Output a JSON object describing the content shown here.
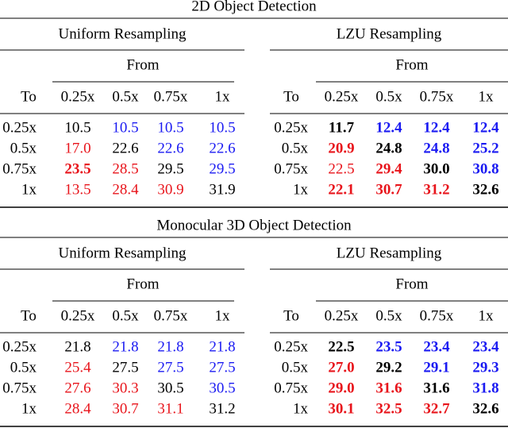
{
  "sections": [
    {
      "title": "2D Object Detection",
      "tables": [
        {
          "title": "Uniform Resampling",
          "from_label": "From",
          "to_label": "To",
          "columns": [
            "0.25x",
            "0.5x",
            "0.75x",
            "1x"
          ],
          "rows": [
            {
              "label": "0.25x",
              "values": [
                "10.5",
                "10.5",
                "10.5",
                "10.5"
              ],
              "bold": [
                false,
                false,
                false,
                false
              ]
            },
            {
              "label": "0.5x",
              "values": [
                "17.0",
                "22.6",
                "22.6",
                "22.6"
              ],
              "bold": [
                false,
                false,
                false,
                false
              ]
            },
            {
              "label": "0.75x",
              "values": [
                "23.5",
                "28.5",
                "29.5",
                "29.5"
              ],
              "bold": [
                true,
                false,
                false,
                false
              ]
            },
            {
              "label": "1x",
              "values": [
                "13.5",
                "28.4",
                "30.9",
                "31.9"
              ],
              "bold": [
                false,
                false,
                false,
                false
              ]
            }
          ]
        },
        {
          "title": "LZU Resampling",
          "from_label": "From",
          "to_label": "To",
          "columns": [
            "0.25x",
            "0.5x",
            "0.75x",
            "1x"
          ],
          "rows": [
            {
              "label": "0.25x",
              "values": [
                "11.7",
                "12.4",
                "12.4",
                "12.4"
              ],
              "bold": [
                true,
                true,
                true,
                true
              ]
            },
            {
              "label": "0.5x",
              "values": [
                "20.9",
                "24.8",
                "24.8",
                "25.2"
              ],
              "bold": [
                true,
                true,
                true,
                true
              ]
            },
            {
              "label": "0.75x",
              "values": [
                "22.5",
                "29.4",
                "30.0",
                "30.8"
              ],
              "bold": [
                false,
                true,
                true,
                true
              ]
            },
            {
              "label": "1x",
              "values": [
                "22.1",
                "30.7",
                "31.2",
                "32.6"
              ],
              "bold": [
                true,
                true,
                true,
                true
              ]
            }
          ]
        }
      ]
    },
    {
      "title": "Monocular 3D Object Detection",
      "tables": [
        {
          "title": "Uniform Resampling",
          "from_label": "From",
          "to_label": "To",
          "columns": [
            "0.25x",
            "0.5x",
            "0.75x",
            "1x"
          ],
          "rows": [
            {
              "label": "0.25x",
              "values": [
                "21.8",
                "21.8",
                "21.8",
                "21.8"
              ],
              "bold": [
                false,
                false,
                false,
                false
              ]
            },
            {
              "label": "0.5x",
              "values": [
                "25.4",
                "27.5",
                "27.5",
                "27.5"
              ],
              "bold": [
                false,
                false,
                false,
                false
              ]
            },
            {
              "label": "0.75x",
              "values": [
                "27.6",
                "30.3",
                "30.5",
                "30.5"
              ],
              "bold": [
                false,
                false,
                false,
                false
              ]
            },
            {
              "label": "1x",
              "values": [
                "28.4",
                "30.7",
                "31.1",
                "31.2"
              ],
              "bold": [
                false,
                false,
                false,
                false
              ]
            }
          ]
        },
        {
          "title": "LZU Resampling",
          "from_label": "From",
          "to_label": "To",
          "columns": [
            "0.25x",
            "0.5x",
            "0.75x",
            "1x"
          ],
          "rows": [
            {
              "label": "0.25x",
              "values": [
                "22.5",
                "23.5",
                "23.4",
                "23.4"
              ],
              "bold": [
                true,
                true,
                true,
                true
              ]
            },
            {
              "label": "0.5x",
              "values": [
                "27.0",
                "29.2",
                "29.1",
                "29.3"
              ],
              "bold": [
                true,
                true,
                true,
                true
              ]
            },
            {
              "label": "0.75x",
              "values": [
                "29.0",
                "31.6",
                "31.6",
                "31.8"
              ],
              "bold": [
                true,
                true,
                true,
                true
              ]
            },
            {
              "label": "1x",
              "values": [
                "30.1",
                "32.5",
                "32.7",
                "32.6"
              ],
              "bold": [
                true,
                true,
                true,
                true
              ]
            }
          ]
        }
      ]
    }
  ]
}
